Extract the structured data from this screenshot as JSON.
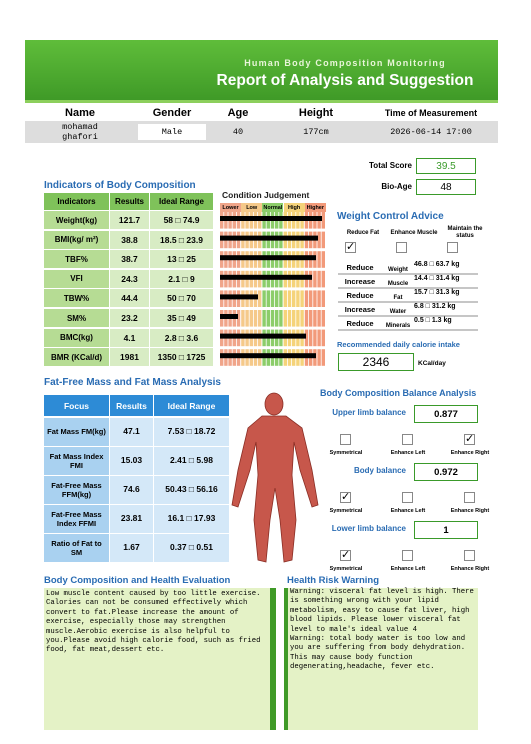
{
  "header": {
    "subtitle": "Human Body Composition Monitoring",
    "title": "Report of Analysis and Suggestion"
  },
  "info": {
    "headers": [
      "Name",
      "Gender",
      "Age",
      "Height",
      "Time of Measurement"
    ],
    "values": [
      "mohamad ghafori",
      "Male",
      "40",
      "177cm",
      "2026-06-14 17:00"
    ]
  },
  "score": {
    "total_label": "Total Score",
    "total": "39.5",
    "bioage_label": "Bio-Age",
    "bioage": "48"
  },
  "indicators": {
    "title": "Indicators of Body Composition",
    "headers": [
      "Indicators",
      "Results",
      "Ideal Range"
    ],
    "rows": [
      [
        "Weight(kg)",
        "121.7",
        "58 □ 74.9"
      ],
      [
        "BMI(kg/ m²)",
        "38.8",
        "18.5 □ 23.9"
      ],
      [
        "TBF%",
        "38.7",
        "13 □ 25"
      ],
      [
        "VFI",
        "24.3",
        "2.1 □ 9"
      ],
      [
        "TBW%",
        "44.4",
        "50 □ 70"
      ],
      [
        "SM%",
        "23.2",
        "35 □ 49"
      ],
      [
        "BMC(kg)",
        "4.1",
        "2.8 □ 3.6"
      ],
      [
        "BMR (KCal/d)",
        "1981",
        "1350 □ 1725"
      ]
    ]
  },
  "condition": {
    "title": "Condition Judgement",
    "levels": [
      "Lower",
      "Low",
      "Normal",
      "High",
      "Higher"
    ]
  },
  "weight_control": {
    "title": "Weight Control Advice",
    "options": [
      "Reduce Fat",
      "Enhance Muscle",
      "Maintain the status"
    ],
    "checked": 0,
    "rows": [
      [
        "Reduce",
        "Weight",
        "46.8 □ 63.7 kg"
      ],
      [
        "Increase",
        "Muscle",
        "14.4 □ 31.4 kg"
      ],
      [
        "Reduce",
        "Fat",
        "15.7 □ 31.3 kg"
      ],
      [
        "Increase",
        "Water",
        "6.8 □ 31.2 kg"
      ],
      [
        "Reduce",
        "Minerals",
        "0.5 □ 1.3 kg"
      ]
    ]
  },
  "calorie": {
    "title": "Recommended daily calorie intake",
    "value": "2346",
    "unit": "KCal/day"
  },
  "fat_free": {
    "title": "Fat-Free Mass and Fat Mass Analysis",
    "headers": [
      "Focus",
      "Results",
      "Ideal Range"
    ],
    "rows": [
      [
        "Fat Mass FM(kg)",
        "47.1",
        "7.53 □ 18.72"
      ],
      [
        "Fat Mass Index FMI",
        "15.03",
        "2.41 □ 5.98"
      ],
      [
        "Fat-Free Mass FFM(kg)",
        "74.6",
        "50.43 □ 56.16"
      ],
      [
        "Fat-Free Mass Index FFMI",
        "23.81",
        "16.1 □ 17.93"
      ],
      [
        "Ratio of Fat to SM",
        "1.67",
        "0.37 □ 0.51"
      ]
    ]
  },
  "balance": {
    "title": "Body Composition Balance Analysis",
    "options": [
      "Symmetrical",
      "Enhance Left",
      "Enhance Right"
    ],
    "items": [
      {
        "label": "Upper limb balance",
        "value": "0.877",
        "checked": 2
      },
      {
        "label": "Body balance",
        "value": "0.972",
        "checked": 0
      },
      {
        "label": "Lower limb balance",
        "value": "1",
        "checked": 0
      }
    ]
  },
  "evaluation": {
    "title": "Body Composition and Health Evaluation",
    "text": "Low muscle content caused by too little exercise. Calories can not be consumed effectively which convert to fat.Please increase the amount of exercise, especially those may strengthen muscle.Aerobic exercise is also helpful to you.Please avoid high calorie food, such as fried food, fat meat,dessert etc."
  },
  "risk": {
    "title": "Health Risk Warning",
    "text": "Warning: visceral fat level is high. There is something wrong with your lipid metabolism, easy to cause fat liver, high blood lipids. Please lower visceral fat level to male's ideal value 4\nWarning: total body water is too low and you are suffering from body dehydration. This may cause body function degenerating,headache, fever etc."
  }
}
